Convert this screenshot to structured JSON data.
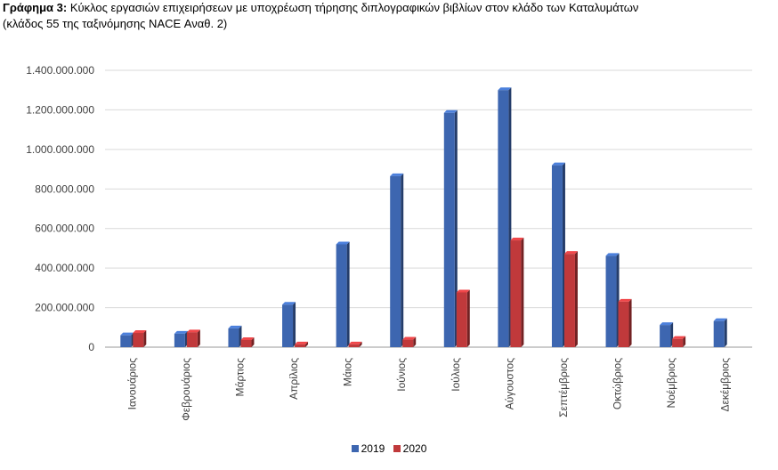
{
  "header": {
    "label": "Γράφημα 3:",
    "title_line1": "Κύκλος εργασιών επιχειρήσεων με υποχρέωση τήρησης διπλογραφικών βιβλίων στον κλάδο των Καταλυμάτων",
    "title_line2": "(κλάδος 55 της ταξινόμησης NACE Αναθ. 2)"
  },
  "chart_data": {
    "type": "bar",
    "title": "Κύκλος εργασιών επιχειρήσεων με υποχρέωση τήρησης διπλογραφικών βιβλίων στον κλάδο των Καταλυμάτων (κλάδος 55 της ταξινόμησης NACE Αναθ. 2)",
    "categories": [
      "Ιανουάριος",
      "Φεβρουάριος",
      "Μάρτιος",
      "Απρίλιος",
      "Μάιος",
      "Ιούνιος",
      "Ιούλιος",
      "Αύγουστος",
      "Σεπτέμβριος",
      "Οκτώβριος",
      "Νοέμβριος",
      "Δεκέμβριος"
    ],
    "series": [
      {
        "name": "2019",
        "color": "#3d66b0",
        "values": [
          60000000,
          68000000,
          95000000,
          215000000,
          520000000,
          865000000,
          1185000000,
          1300000000,
          920000000,
          462000000,
          112000000,
          132000000
        ]
      },
      {
        "name": "2020",
        "color": "#c0393b",
        "values": [
          72000000,
          75000000,
          36000000,
          14000000,
          14000000,
          38000000,
          277000000,
          540000000,
          472000000,
          230000000,
          42000000,
          null
        ]
      }
    ],
    "ylim": [
      0,
      1400000000
    ],
    "yticks": [
      0,
      200000000,
      400000000,
      600000000,
      800000000,
      1000000000,
      1200000000,
      1400000000
    ],
    "ytick_labels": [
      "0",
      "200.000.000",
      "400.000.000",
      "600.000.000",
      "800.000.000",
      "1.000.000.000",
      "1.200.000.000",
      "1.400.000.000"
    ],
    "grid": true,
    "legend": "bottom"
  }
}
